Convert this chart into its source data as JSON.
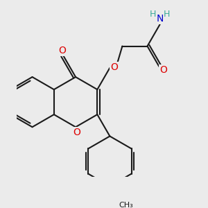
{
  "background_color": "#ebebeb",
  "bond_color": "#1a1a1a",
  "bond_width": 1.5,
  "atom_colors": {
    "O": "#dd0000",
    "N": "#0000cc",
    "C": "#1a1a1a",
    "H": "#3aaa99"
  },
  "font_size": 9,
  "fig_size": [
    3.0,
    3.0
  ],
  "dpi": 100,
  "xlim": [
    -1.5,
    5.5
  ],
  "ylim": [
    -3.5,
    3.5
  ]
}
